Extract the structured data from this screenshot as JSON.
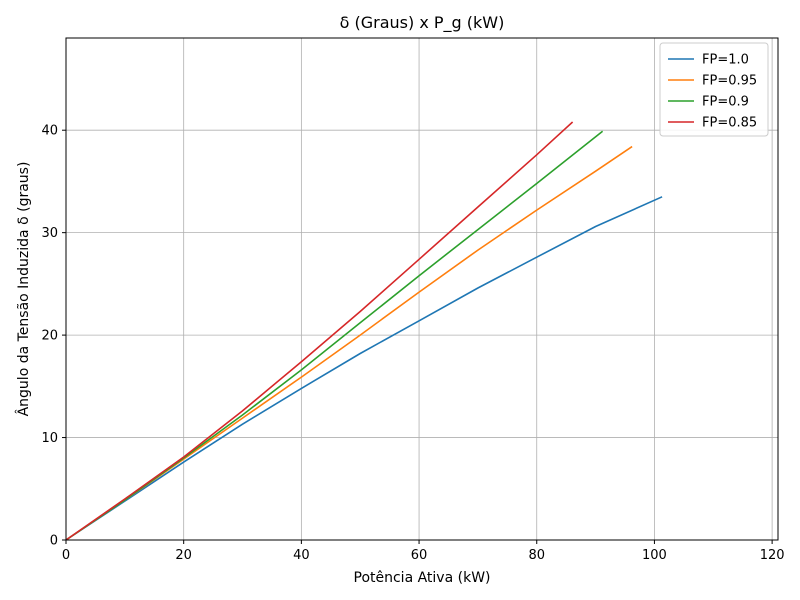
{
  "chart_data": {
    "type": "line",
    "title": "δ (Graus) x P_g (kW)",
    "xlabel": "Potência Ativa (kW)",
    "ylabel": "Ângulo da Tensão Induzida δ (graus)",
    "xlim": [
      0,
      121
    ],
    "ylim": [
      0,
      49
    ],
    "xticks": [
      0,
      20,
      40,
      60,
      80,
      100,
      120
    ],
    "yticks": [
      0,
      10,
      20,
      30,
      40
    ],
    "grid": true,
    "legend_position": "top-right",
    "series": [
      {
        "name": "FP=1.0",
        "color": "#1f77b4",
        "x": [
          0,
          10,
          20,
          30,
          40,
          50,
          60,
          70,
          80,
          90,
          101.3
        ],
        "y": [
          0,
          3.8,
          7.6,
          11.3,
          14.8,
          18.2,
          21.4,
          24.6,
          27.6,
          30.6,
          33.5
        ]
      },
      {
        "name": "FP=0.95",
        "color": "#ff7f0e",
        "x": [
          0,
          10,
          20,
          30,
          40,
          50,
          60,
          70,
          80,
          90,
          96.2
        ],
        "y": [
          0,
          3.9,
          7.9,
          11.9,
          15.9,
          20.0,
          24.2,
          28.3,
          32.2,
          36.0,
          38.4
        ]
      },
      {
        "name": "FP=0.9",
        "color": "#2ca02c",
        "x": [
          0,
          10,
          20,
          30,
          40,
          50,
          60,
          70,
          80,
          91.2
        ],
        "y": [
          0,
          3.9,
          8.0,
          12.2,
          16.6,
          21.2,
          25.8,
          30.3,
          34.8,
          39.9
        ]
      },
      {
        "name": "FP=0.85",
        "color": "#d62728",
        "x": [
          0,
          10,
          20,
          30,
          40,
          50,
          60,
          70,
          80,
          86.1
        ],
        "y": [
          0,
          4.0,
          8.1,
          12.6,
          17.4,
          22.3,
          27.4,
          32.5,
          37.6,
          40.8
        ]
      }
    ]
  }
}
